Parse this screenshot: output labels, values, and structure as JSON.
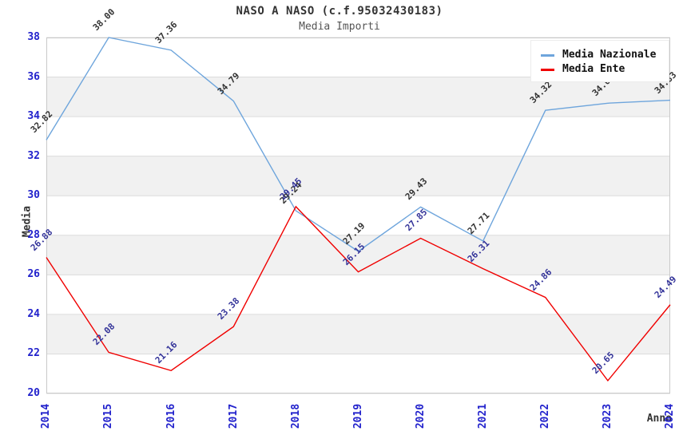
{
  "chart_data": {
    "type": "line",
    "title": "NASO A NASO (c.f.95032430183)",
    "subtitle": "Media Importi",
    "xlabel": "Anno",
    "ylabel": "Media",
    "x": [
      2014,
      2015,
      2016,
      2017,
      2018,
      2019,
      2020,
      2021,
      2022,
      2023,
      2024
    ],
    "series": [
      {
        "name": "Media Nazionale",
        "color": "#6ea5dc",
        "label_color": "#333333",
        "values": [
          32.82,
          38.0,
          37.36,
          34.79,
          29.24,
          27.19,
          29.43,
          27.71,
          34.32,
          34.68,
          34.83
        ]
      },
      {
        "name": "Media Ente",
        "color": "#f00000",
        "label_color": "#333399",
        "values": [
          26.88,
          22.08,
          21.16,
          23.38,
          29.45,
          26.15,
          27.85,
          26.31,
          24.86,
          20.65,
          24.49
        ]
      }
    ],
    "ylim": [
      20,
      38
    ],
    "yticks": [
      20,
      22,
      24,
      26,
      28,
      30,
      32,
      34,
      36,
      38
    ],
    "grid": "horizontal-bands",
    "legend_position": "top-right",
    "colors": {
      "tick_label": "#2222cc",
      "band_gray": "#f1f1f1",
      "band_white": "#ffffff",
      "gridline": "#dcdcdc",
      "plot_border": "#c9c9c9",
      "title": "#333333",
      "subtitle": "#555555"
    }
  }
}
